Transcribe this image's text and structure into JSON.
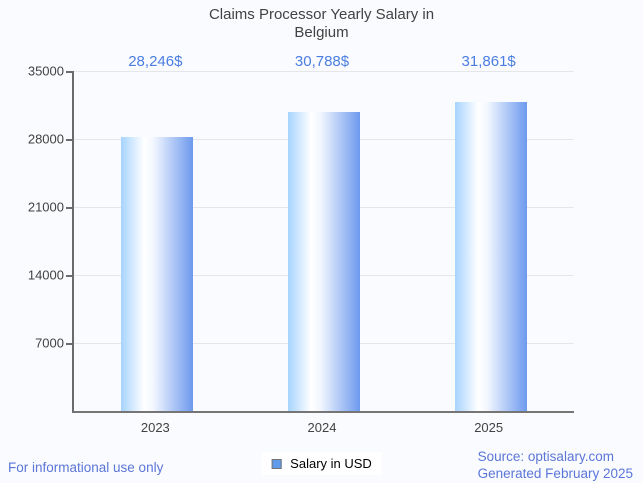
{
  "page": {
    "background": "#fafbfe"
  },
  "chart_data": {
    "type": "bar",
    "title": "Claims Processor Yearly Salary in Belgium",
    "categories": [
      "2023",
      "2024",
      "2025"
    ],
    "values": [
      28246,
      30788,
      31861
    ],
    "data_labels": [
      "28,246$",
      "30,788$",
      "31,861$"
    ],
    "series_name": "Salary in USD",
    "y_ticks": [
      35000,
      28000,
      21000,
      14000,
      7000
    ],
    "ylim": [
      0,
      35000
    ],
    "xlabel": "",
    "ylabel": "",
    "grid": "horizontal",
    "legend_position": "bottom-center"
  },
  "legend": {
    "label": "Salary in USD",
    "swatch_color": "#5f9bea"
  },
  "footer": {
    "disclaimer": "For informational use only",
    "source": "Source: optisalary.com",
    "generated": "Generated February 2025"
  },
  "colors": {
    "title_text": "#424242",
    "axis_text": "#424242",
    "value_label_text": "#4a7de2",
    "footer_text": "#5b76d8",
    "axis_line": "#6b6b6b",
    "gridline": "#e4e6ea",
    "bar_gradient": [
      "#a6d3fe",
      "#ffffff",
      "#6d99ee"
    ],
    "legend_swatch": "#5f9bea"
  }
}
